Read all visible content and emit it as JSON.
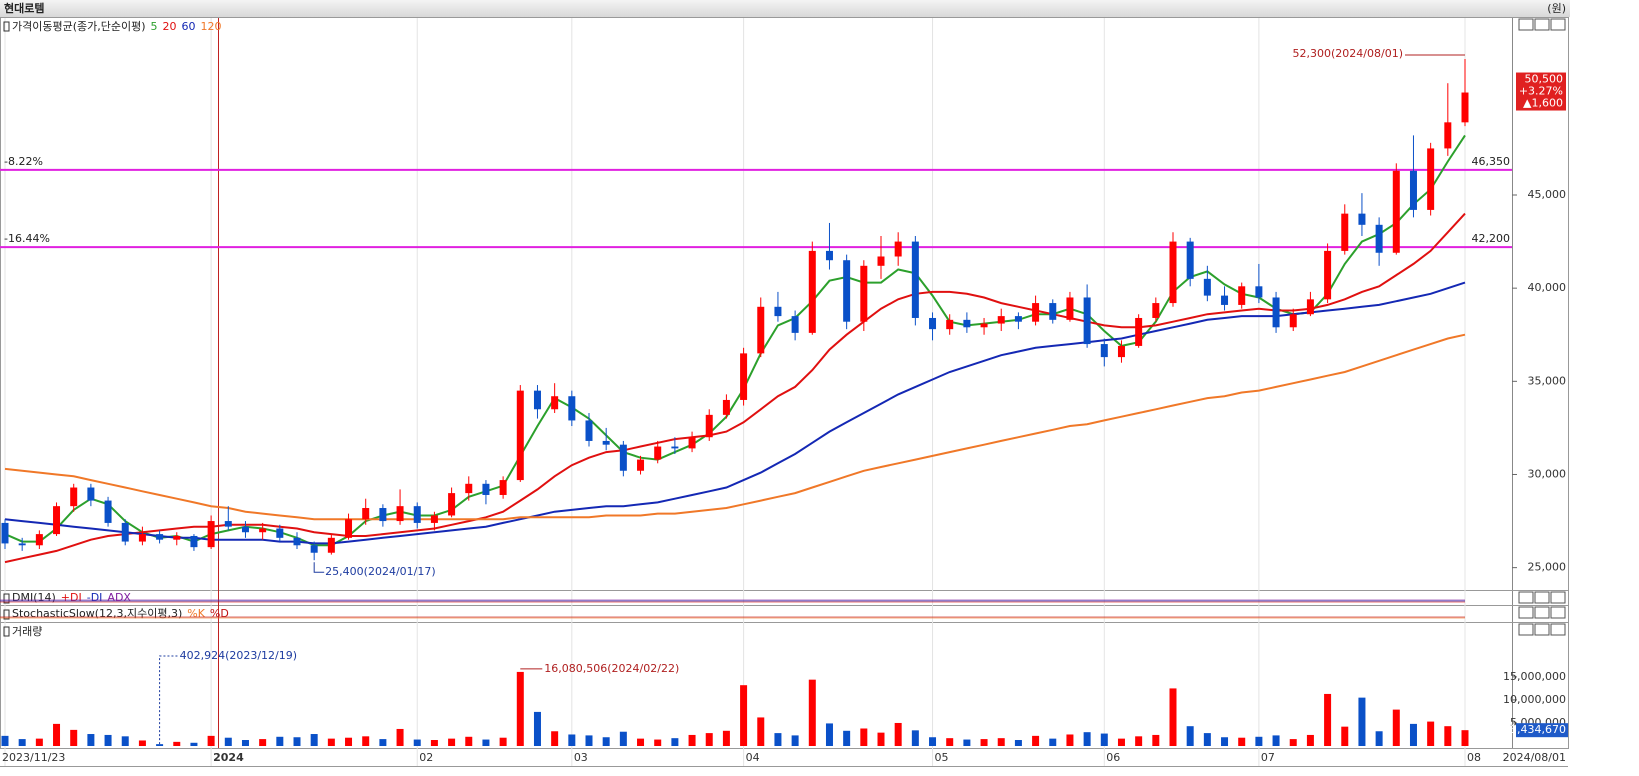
{
  "header": {
    "title": "현대로템",
    "unit": "(원)"
  },
  "chart_data": [
    {
      "type": "candlestick",
      "legend_title": "가격이동평균(종가,단순이평)",
      "categories": [
        "2023/11/23",
        null,
        null,
        null,
        null,
        null,
        null,
        null,
        null,
        null,
        null,
        null,
        "2024",
        null,
        null,
        null,
        null,
        null,
        null,
        null,
        null,
        null,
        null,
        null,
        "02",
        null,
        null,
        null,
        null,
        null,
        null,
        null,
        null,
        "03",
        null,
        null,
        null,
        null,
        null,
        null,
        null,
        null,
        null,
        "04",
        null,
        null,
        null,
        null,
        null,
        null,
        null,
        null,
        null,
        null,
        "05",
        null,
        null,
        null,
        null,
        null,
        null,
        null,
        null,
        null,
        "06",
        null,
        null,
        null,
        null,
        null,
        null,
        null,
        null,
        "07",
        null,
        null,
        null,
        null,
        null,
        null,
        null,
        null,
        null,
        null,
        null,
        "08"
      ],
      "open": [
        27400,
        26300,
        26200,
        26800,
        28300,
        29300,
        28600,
        27400,
        26400,
        26800,
        26500,
        26700,
        26100,
        27500,
        27200,
        26900,
        27100,
        26600,
        26200,
        25800,
        26600,
        27600,
        28200,
        27500,
        28300,
        27400,
        27800,
        29000,
        29500,
        28900,
        29700,
        34500,
        33500,
        34200,
        32900,
        31800,
        31600,
        30200,
        30800,
        31500,
        31400,
        32000,
        33200,
        34000,
        36500,
        39000,
        38500,
        37600,
        42000,
        41500,
        38200,
        41200,
        41700,
        42500,
        38400,
        37800,
        38300,
        37900,
        38100,
        38500,
        38200,
        39200,
        38300,
        39500,
        37000,
        36300,
        36900,
        38400,
        39200,
        42500,
        40500,
        39600,
        39100,
        40100,
        39500,
        37900,
        38600,
        39400,
        42000,
        44000,
        43400,
        41900,
        46300,
        44200,
        47500,
        48900
      ],
      "high": [
        27600,
        26600,
        27000,
        28500,
        29500,
        29500,
        28800,
        27600,
        27200,
        27000,
        26900,
        26800,
        27800,
        28300,
        27500,
        27400,
        27300,
        26900,
        26400,
        26800,
        27900,
        28700,
        28400,
        29200,
        28500,
        28000,
        29300,
        29900,
        29700,
        29900,
        34800,
        34800,
        34900,
        34500,
        33300,
        32500,
        31800,
        31000,
        31800,
        32000,
        32300,
        33500,
        34300,
        36800,
        39500,
        39800,
        38800,
        42500,
        43500,
        41800,
        41500,
        42800,
        43000,
        42800,
        38700,
        38600,
        38700,
        38400,
        38900,
        38700,
        39600,
        39400,
        39800,
        40200,
        37300,
        37200,
        38600,
        39500,
        43000,
        42700,
        41200,
        40100,
        40300,
        41300,
        39800,
        38900,
        39800,
        42400,
        44500,
        45100,
        43800,
        46700,
        48200,
        47800,
        51000,
        52300
      ],
      "low": [
        26000,
        25900,
        26000,
        26700,
        28000,
        28300,
        27200,
        26200,
        26200,
        26300,
        26200,
        25900,
        26000,
        27000,
        26600,
        26500,
        26400,
        26000,
        25400,
        25700,
        26500,
        27300,
        27200,
        27300,
        27100,
        27000,
        27700,
        28600,
        28400,
        28700,
        29600,
        33000,
        33300,
        32600,
        31500,
        31300,
        29900,
        30000,
        30600,
        31100,
        31200,
        31800,
        33000,
        33700,
        36300,
        38200,
        37200,
        37500,
        41000,
        37800,
        37700,
        40500,
        41200,
        38000,
        37200,
        37500,
        37600,
        37500,
        37700,
        37800,
        38000,
        38100,
        38200,
        36800,
        35800,
        36000,
        36800,
        38200,
        39000,
        40100,
        39300,
        38800,
        38900,
        39200,
        37600,
        37700,
        38500,
        39200,
        41800,
        42800,
        41200,
        41800,
        43800,
        43900,
        47100,
        48700
      ],
      "close": [
        26300,
        26200,
        26800,
        28300,
        29300,
        28600,
        27400,
        26400,
        26800,
        26500,
        26700,
        26100,
        27500,
        27200,
        26900,
        27100,
        26600,
        26200,
        25800,
        26600,
        27600,
        28200,
        27500,
        28300,
        27400,
        27800,
        29000,
        29500,
        28900,
        29700,
        34500,
        33500,
        34200,
        32900,
        31800,
        31600,
        30200,
        30800,
        31500,
        31400,
        32000,
        33200,
        34000,
        36500,
        39000,
        38500,
        37600,
        42000,
        41500,
        38200,
        41200,
        41700,
        42500,
        38400,
        37800,
        38300,
        37900,
        38100,
        38500,
        38200,
        39200,
        38300,
        39500,
        37000,
        36300,
        36900,
        38400,
        39200,
        42500,
        40500,
        39600,
        39100,
        40100,
        39500,
        37900,
        38600,
        39400,
        42000,
        44000,
        43400,
        41900,
        46300,
        44200,
        47500,
        48900,
        50500
      ],
      "up_color": "#ff0000",
      "down_color": "#0a50c8",
      "ylim": [
        23800,
        54500
      ],
      "yticks": [
        {
          "value": 25000,
          "label": "25,000"
        },
        {
          "value": 30000,
          "label": "30,000"
        },
        {
          "value": 35000,
          "label": "35,000"
        },
        {
          "value": 40000,
          "label": "40,000"
        },
        {
          "value": 45000,
          "label": "45,000"
        }
      ],
      "moving_averages": [
        {
          "name": "5",
          "color": "#2ca02c",
          "values": [
            26800,
            26400,
            26400,
            27100,
            28100,
            28700,
            28400,
            27500,
            26900,
            26600,
            26700,
            26400,
            26800,
            27000,
            27200,
            27100,
            26900,
            26600,
            26200,
            26200,
            26700,
            27500,
            27800,
            28000,
            27800,
            27800,
            28100,
            28800,
            29100,
            29400,
            31000,
            32600,
            34100,
            33600,
            33000,
            32100,
            31200,
            30900,
            30800,
            31200,
            31600,
            32200,
            33100,
            34600,
            36500,
            38000,
            38400,
            39300,
            40400,
            40600,
            40300,
            40300,
            41000,
            40800,
            39600,
            38200,
            38000,
            38100,
            38200,
            38300,
            38600,
            38600,
            38900,
            38600,
            37700,
            36900,
            37100,
            38200,
            39800,
            40600,
            40900,
            40200,
            39700,
            39500,
            38900,
            38600,
            38700,
            39700,
            41300,
            42500,
            42900,
            43500,
            44500,
            45300,
            46800,
            48200
          ]
        },
        {
          "name": "20",
          "color": "#e01010",
          "values": [
            25300,
            25500,
            25700,
            25900,
            26200,
            26500,
            26700,
            26800,
            26900,
            27000,
            27100,
            27200,
            27200,
            27300,
            27300,
            27300,
            27200,
            27100,
            26900,
            26800,
            26700,
            26700,
            26800,
            26900,
            27000,
            27100,
            27300,
            27500,
            27700,
            28000,
            28600,
            29200,
            29900,
            30500,
            30900,
            31200,
            31300,
            31500,
            31700,
            31900,
            32000,
            32100,
            32300,
            32800,
            33500,
            34200,
            34700,
            35600,
            36700,
            37500,
            38200,
            38900,
            39400,
            39700,
            39800,
            39800,
            39700,
            39500,
            39200,
            39000,
            38800,
            38600,
            38400,
            38200,
            38000,
            37900,
            37900,
            38000,
            38200,
            38400,
            38600,
            38700,
            38800,
            38900,
            38800,
            38800,
            38900,
            39100,
            39400,
            39800,
            40100,
            40700,
            41300,
            42000,
            43000,
            44000
          ]
        },
        {
          "name": "60",
          "color": "#1428b4",
          "values": [
            27600,
            27500,
            27400,
            27300,
            27200,
            27100,
            27000,
            26900,
            26800,
            26700,
            26600,
            26600,
            26500,
            26500,
            26500,
            26500,
            26400,
            26400,
            26300,
            26300,
            26400,
            26500,
            26600,
            26700,
            26800,
            26900,
            27000,
            27100,
            27200,
            27400,
            27600,
            27800,
            28000,
            28100,
            28200,
            28300,
            28300,
            28400,
            28500,
            28700,
            28900,
            29100,
            29300,
            29700,
            30100,
            30600,
            31100,
            31700,
            32300,
            32800,
            33300,
            33800,
            34300,
            34700,
            35100,
            35500,
            35800,
            36100,
            36400,
            36600,
            36800,
            36900,
            37000,
            37100,
            37200,
            37300,
            37500,
            37700,
            37900,
            38100,
            38300,
            38400,
            38500,
            38500,
            38500,
            38600,
            38700,
            38800,
            38900,
            39000,
            39100,
            39300,
            39500,
            39700,
            40000,
            40300
          ]
        },
        {
          "name": "120",
          "color": "#f07828",
          "values": [
            30300,
            30200,
            30100,
            30000,
            29900,
            29700,
            29500,
            29300,
            29100,
            28900,
            28700,
            28500,
            28300,
            28200,
            28000,
            27900,
            27800,
            27700,
            27600,
            27600,
            27600,
            27600,
            27600,
            27600,
            27600,
            27600,
            27600,
            27600,
            27600,
            27600,
            27700,
            27700,
            27700,
            27700,
            27700,
            27800,
            27800,
            27800,
            27900,
            27900,
            28000,
            28100,
            28200,
            28400,
            28600,
            28800,
            29000,
            29300,
            29600,
            29900,
            30200,
            30400,
            30600,
            30800,
            31000,
            31200,
            31400,
            31600,
            31800,
            32000,
            32200,
            32400,
            32600,
            32700,
            32900,
            33100,
            33300,
            33500,
            33700,
            33900,
            34100,
            34200,
            34400,
            34500,
            34700,
            34900,
            35100,
            35300,
            35500,
            35800,
            36100,
            36400,
            36700,
            37000,
            37300,
            37500
          ]
        }
      ],
      "reference_lines": [
        {
          "value": 46350,
          "label": "46,350",
          "change": "-8.22%",
          "color": "#e020e0"
        },
        {
          "value": 42200,
          "label": "42,200",
          "change": "-16.44%",
          "color": "#e020e0"
        }
      ],
      "high_annotation": "52,300(2024/08/01)",
      "low_annotation": "25,400(2024/01/17)",
      "last": {
        "price": "50,500",
        "change": "+3.27%",
        "diff": "▲1,600"
      },
      "end_label": "2024/08/01"
    },
    {
      "type": "indicator",
      "title": "DMI(14)",
      "series": [
        {
          "name": "+DI",
          "color": "#e01010"
        },
        {
          "name": "-DI",
          "color": "#1428b4"
        },
        {
          "name": "ADX",
          "color": "#8020a0"
        }
      ]
    },
    {
      "type": "indicator",
      "title": "StochasticSlow(12,3,지수이평,3)",
      "series": [
        {
          "name": "%K",
          "color": "#f07828"
        },
        {
          "name": "%D",
          "color": "#c01010"
        }
      ]
    },
    {
      "type": "bar",
      "title": "거래량",
      "values": [
        2200000,
        1500000,
        1600000,
        4800000,
        3500000,
        2600000,
        2400000,
        2100000,
        1200000,
        402924,
        900000,
        700000,
        2200000,
        1800000,
        1300000,
        1500000,
        2000000,
        1900000,
        2600000,
        1600000,
        1800000,
        2100000,
        1500000,
        3700000,
        1400000,
        1300000,
        1600000,
        2000000,
        1400000,
        1800000,
        16080506,
        7400000,
        3200000,
        2500000,
        2300000,
        1900000,
        3100000,
        1600000,
        1400000,
        1700000,
        2400000,
        2800000,
        3300000,
        13200000,
        6200000,
        2800000,
        2300000,
        14400000,
        4900000,
        3300000,
        3800000,
        2900000,
        5000000,
        3400000,
        1900000,
        1700000,
        1400000,
        1500000,
        1700000,
        1300000,
        2200000,
        1600000,
        2500000,
        3000000,
        2700000,
        1600000,
        2100000,
        2400000,
        12500000,
        4300000,
        2800000,
        1900000,
        1800000,
        2000000,
        2300000,
        1500000,
        2400000,
        11300000,
        4200000,
        10500000,
        3200000,
        7900000,
        4800000,
        5300000,
        4300000,
        3434670
      ],
      "ylim": [
        0,
        26700000
      ],
      "yticks": [
        {
          "value": 5000000,
          "label": "5,000,000"
        },
        {
          "value": 10000000,
          "label": "10,000,000"
        },
        {
          "value": 15000000,
          "label": "15,000,000"
        }
      ],
      "max_annotation": "16,080,506(2024/02/22)",
      "min_annotation": "402,924(2023/12/19)",
      "last_label": "3,434,670"
    }
  ]
}
